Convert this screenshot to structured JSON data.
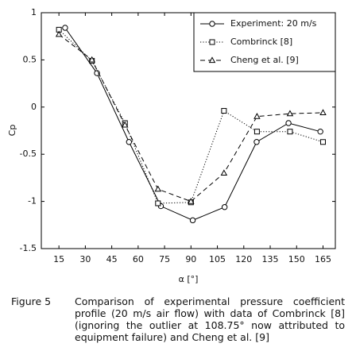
{
  "chart_data": {
    "type": "line",
    "xlabel": "α [°]",
    "ylabel": "Cp",
    "xlim": [
      5,
      172
    ],
    "xticks": [
      15,
      30,
      45,
      60,
      75,
      90,
      105,
      120,
      135,
      150,
      165
    ],
    "ylim": [
      -1.5,
      1
    ],
    "yticks": [
      1,
      0.5,
      0,
      -0.5,
      -1,
      -1.5
    ],
    "legend": "upper right",
    "series": [
      {
        "name": "Experiment: 20 m/s",
        "color": "#000000",
        "marker": "circle",
        "linestyle": "solid",
        "x": [
          18.5,
          36.6,
          54.8,
          72.9,
          91,
          109.1,
          127.3,
          145.4,
          163.5
        ],
        "values": [
          0.84,
          0.36,
          -0.37,
          -1.05,
          -1.2,
          -1.06,
          -0.37,
          -0.17,
          -0.26
        ]
      },
      {
        "name": "Combrinck [8]",
        "color": "#000000",
        "marker": "square",
        "linestyle": "dotted",
        "x": [
          15,
          33.75,
          52.5,
          71.25,
          90,
          108.75,
          127.5,
          146.25,
          165
        ],
        "values": [
          0.82,
          0.49,
          -0.17,
          -1.02,
          -1.01,
          -0.04,
          -0.26,
          -0.26,
          -0.37
        ]
      },
      {
        "name": "Cheng et al. [9]",
        "color": "#000000",
        "marker": "triangle",
        "linestyle": "dashed",
        "x": [
          15,
          33.75,
          52.5,
          71.25,
          90,
          108.75,
          127.5,
          146.25,
          165
        ],
        "values": [
          0.77,
          0.5,
          -0.19,
          -0.87,
          -1.0,
          -0.7,
          -0.1,
          -0.07,
          -0.06
        ]
      }
    ]
  },
  "caption": {
    "label": "Figure 5",
    "text": "Comparison of experimental pressure coefficient profile (20 m/s air flow) with data of Combrinck [8] (ignoring the outlier at 108.75° now attributed to equipment failure) and Cheng et al. [9]"
  }
}
